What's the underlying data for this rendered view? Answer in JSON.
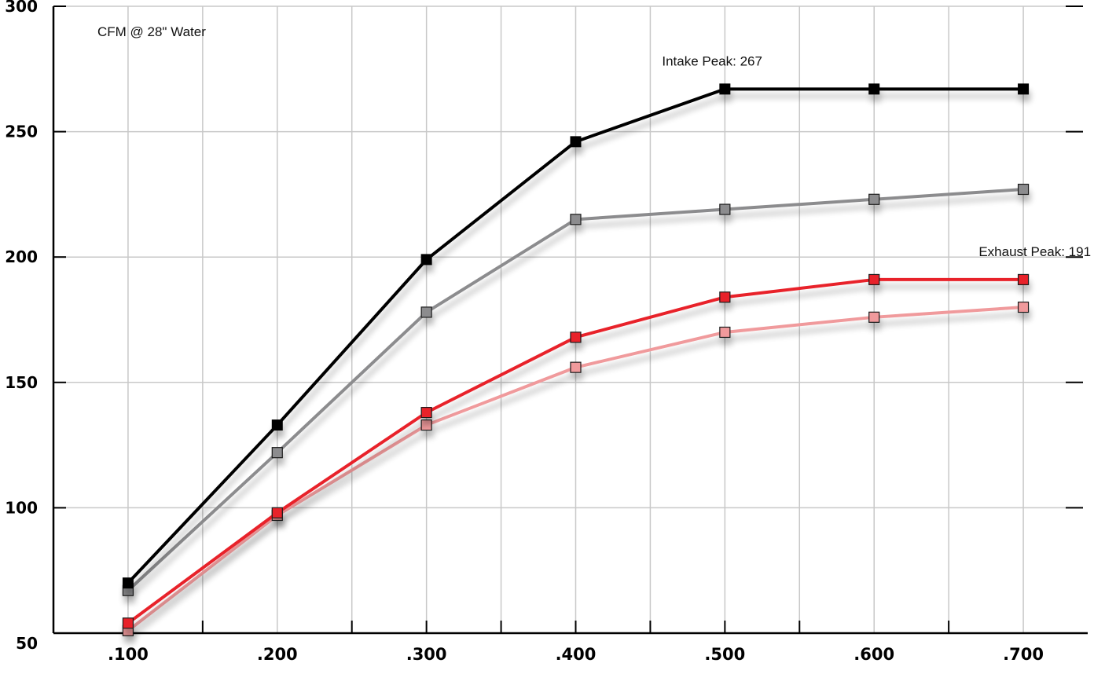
{
  "chart_data": {
    "type": "line",
    "title": "CFM @ 28\" Water",
    "xlabel": "",
    "ylabel": "",
    "x_tick_labels": [
      ".100",
      ".200",
      ".300",
      ".400",
      ".500",
      ".600",
      ".700"
    ],
    "x": [
      0.1,
      0.2,
      0.3,
      0.4,
      0.5,
      0.6,
      0.7
    ],
    "xlim": [
      0.05,
      0.74
    ],
    "y_tick_labels": [
      "300",
      "250",
      "200",
      "150",
      "100",
      "50"
    ],
    "y_ticks": [
      300,
      250,
      200,
      150,
      100,
      50
    ],
    "ylim": [
      50,
      300
    ],
    "grid": true,
    "legend": "none",
    "series": [
      {
        "values": [
          70,
          133,
          199,
          246,
          267,
          267,
          267
        ],
        "color": "#000000",
        "marker_fill": "#000000"
      },
      {
        "values": [
          67,
          122,
          178,
          215,
          219,
          223,
          227
        ],
        "color": "#8c8c8e",
        "marker_fill": "#8c8c8e"
      },
      {
        "values": [
          54,
          98,
          138,
          168,
          184,
          191,
          191
        ],
        "color": "#e8202a",
        "marker_fill": "#e8202a"
      },
      {
        "values": [
          51,
          97,
          133,
          156,
          170,
          176,
          180
        ],
        "color": "#f09a9c",
        "marker_fill": "#f09a9c"
      }
    ],
    "annotations": [
      {
        "text": "Intake Peak: 267",
        "x": 0.5,
        "y": 267
      },
      {
        "text": "Exhaust Peak: 191",
        "x": 0.7,
        "y": 191
      }
    ]
  }
}
